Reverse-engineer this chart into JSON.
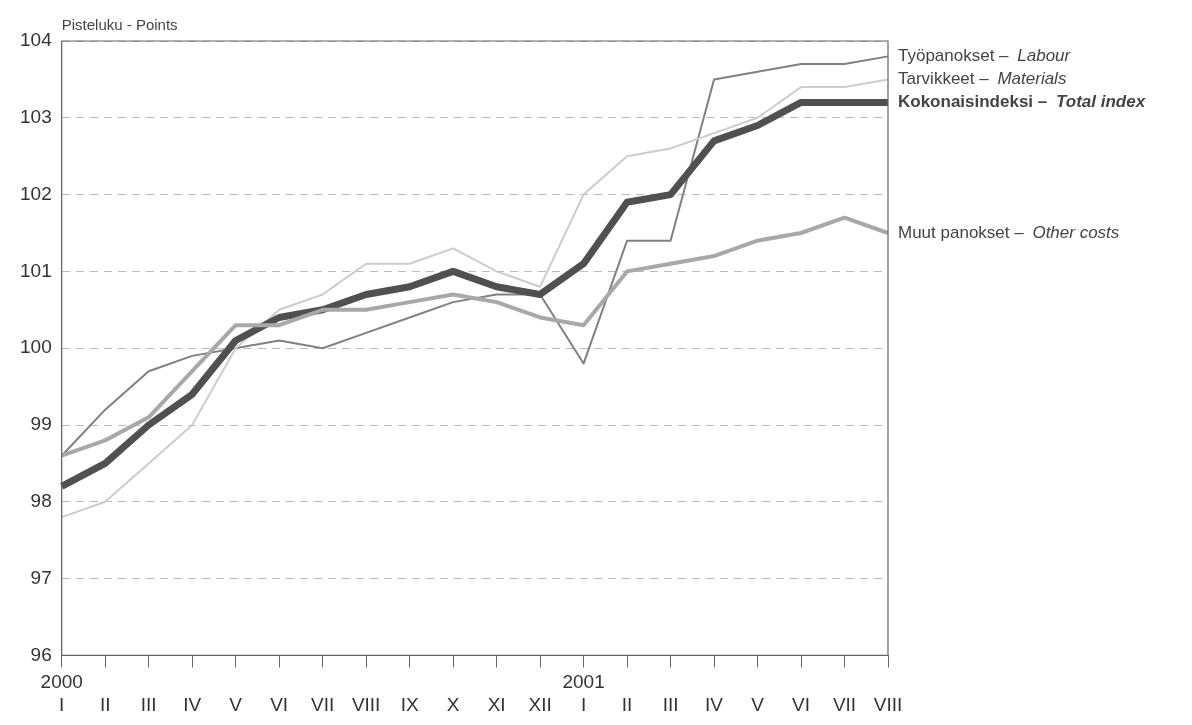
{
  "chart_data": {
    "type": "line",
    "ylabel": "Pisteluku - Points",
    "categories": [
      "2000\nI",
      "II",
      "III",
      "IV",
      "V",
      "VI",
      "VII",
      "VIII",
      "IX",
      "X",
      "XI",
      "XII",
      "2001\nI",
      "II",
      "III",
      "IV",
      "V",
      "VI",
      "VII",
      "VIII"
    ],
    "series": [
      {
        "name": "Työpanokset – Labour",
        "color": "#808080",
        "values": [
          98.6,
          99.2,
          99.7,
          99.9,
          100.0,
          100.1,
          100.0,
          100.2,
          100.4,
          100.6,
          100.7,
          100.7,
          99.8,
          101.4,
          101.4,
          103.5,
          103.6,
          103.7,
          103.7,
          103.8
        ]
      },
      {
        "name": "Tarvikkeet – Materials",
        "color": "#cccccc",
        "values": [
          97.8,
          98.0,
          98.5,
          99.0,
          100.0,
          100.5,
          100.7,
          101.1,
          101.1,
          101.3,
          101.0,
          100.8,
          102.0,
          102.5,
          102.6,
          102.8,
          103.0,
          103.4,
          103.4,
          103.5
        ]
      },
      {
        "name": "Kokonaisindeksi – Total index",
        "color": "#505050",
        "values": [
          98.2,
          98.5,
          99.0,
          99.4,
          100.1,
          100.4,
          100.5,
          100.7,
          100.8,
          101.0,
          100.8,
          100.7,
          101.1,
          101.9,
          102.0,
          102.7,
          102.9,
          103.2,
          103.2,
          103.2
        ]
      },
      {
        "name": "Muut panokset – Other costs",
        "color": "#a8a8a8",
        "values": [
          98.6,
          98.8,
          99.1,
          99.7,
          100.3,
          100.3,
          100.5,
          100.5,
          100.6,
          100.7,
          100.6,
          100.4,
          100.3,
          101.0,
          101.1,
          101.2,
          101.4,
          101.5,
          101.7,
          101.5
        ]
      }
    ],
    "ylim": [
      96,
      104
    ],
    "yticks": [
      96,
      97,
      98,
      99,
      100,
      101,
      102,
      103,
      104
    ],
    "grid": "y",
    "legend": false,
    "marker": "none"
  }
}
